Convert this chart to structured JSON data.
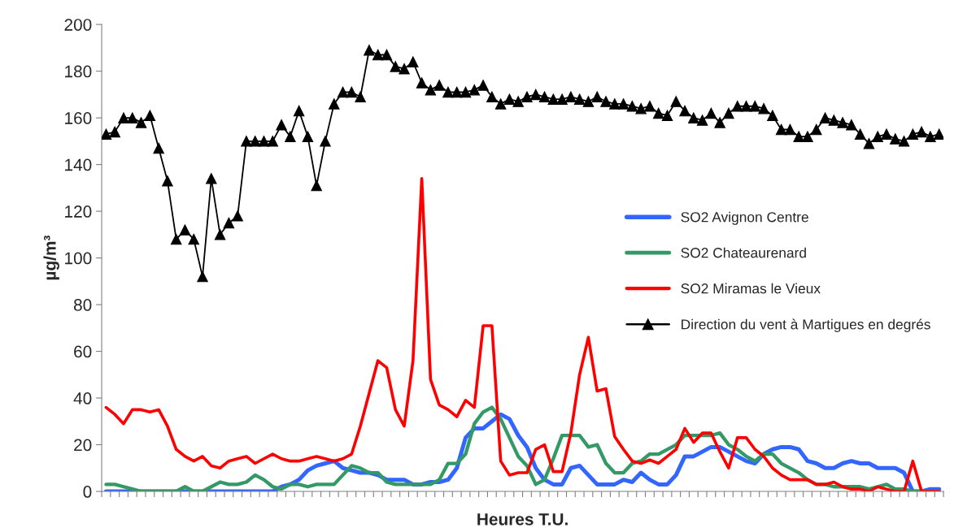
{
  "chart_data": {
    "type": "line",
    "xlabel": "Heures T.U.",
    "ylabel": "µg/m³",
    "categories": [
      null,
      null,
      null,
      null,
      null,
      null,
      null,
      null,
      null,
      null,
      null,
      null,
      null,
      null,
      null,
      null,
      null,
      null,
      null,
      null,
      null,
      null,
      null,
      null,
      null,
      null,
      null,
      null,
      null,
      null,
      null,
      null,
      null,
      null,
      null,
      null,
      null,
      null,
      null,
      null,
      null,
      null,
      null,
      null,
      null,
      null,
      null,
      null,
      null,
      null,
      null,
      null,
      null,
      null,
      null,
      null,
      null,
      null,
      null,
      null,
      null,
      null,
      null,
      null,
      null,
      null,
      null,
      null,
      null,
      null,
      null,
      null,
      null,
      null,
      null,
      null,
      null,
      null,
      null,
      null,
      null,
      null,
      null,
      null,
      null,
      null,
      null,
      null,
      null,
      null,
      null,
      null,
      null,
      null,
      null,
      null
    ],
    "ylim": [
      0,
      200
    ],
    "yticks": [
      0,
      20,
      40,
      60,
      80,
      100,
      120,
      140,
      160,
      180,
      200
    ],
    "grid": false,
    "legend": "right",
    "tick_labels": "y",
    "line_style": "solid",
    "series": [
      {
        "name": "SO2 Avignon Centre",
        "color": "#3366ff",
        "marker": "none",
        "values": [
          0,
          0,
          0,
          0,
          0,
          0,
          0,
          0,
          0,
          0,
          0,
          0,
          0,
          0,
          0,
          0,
          0,
          0,
          0,
          0,
          2,
          3,
          5,
          9,
          11,
          12,
          13,
          10,
          9,
          8,
          8,
          7,
          5,
          5,
          5,
          3,
          3,
          4,
          4,
          5,
          10,
          23,
          27,
          27,
          30,
          33,
          31,
          24,
          19,
          10,
          5,
          3,
          3,
          10,
          11,
          7,
          3,
          3,
          3,
          5,
          4,
          8,
          5,
          3,
          3,
          7,
          15,
          15,
          17,
          19,
          19,
          17,
          15,
          13,
          12,
          16,
          18,
          19,
          19,
          18,
          13,
          12,
          10,
          10,
          12,
          13,
          12,
          12,
          10,
          10,
          10,
          8,
          0,
          0,
          1,
          1
        ]
      },
      {
        "name": "SO2 Chateaurenard",
        "color": "#339966",
        "marker": "none",
        "values": [
          3,
          3,
          2,
          1,
          0,
          0,
          0,
          0,
          0,
          2,
          0,
          0,
          2,
          4,
          3,
          3,
          4,
          7,
          5,
          2,
          1,
          3,
          3,
          2,
          3,
          3,
          3,
          7,
          11,
          10,
          8,
          8,
          4,
          3,
          3,
          3,
          3,
          3,
          5,
          12,
          12,
          16,
          29,
          34,
          36,
          31,
          23,
          15,
          11,
          3,
          5,
          14,
          24,
          24,
          24,
          19,
          20,
          12,
          8,
          8,
          12,
          13,
          16,
          16,
          18,
          20,
          24,
          24,
          24,
          24,
          25,
          20,
          18,
          15,
          13,
          16,
          16,
          12,
          10,
          8,
          5,
          3,
          3,
          2,
          2,
          2,
          2,
          1,
          2,
          3,
          1,
          1,
          0,
          0,
          0,
          0
        ]
      },
      {
        "name": "SO2 Miramas le Vieux",
        "color": "#ff0000",
        "marker": "none",
        "values": [
          36,
          33,
          29,
          35,
          35,
          34,
          35,
          28,
          18,
          15,
          13,
          15,
          11,
          10,
          13,
          14,
          15,
          12,
          14,
          16,
          14,
          13,
          13,
          14,
          15,
          14,
          13,
          14,
          16,
          28,
          42,
          56,
          53,
          35,
          28,
          56,
          134,
          48,
          37,
          35,
          32,
          39,
          36,
          71,
          71,
          13,
          7,
          8,
          8,
          18,
          20,
          8.5,
          8.5,
          25,
          50,
          66,
          43,
          44,
          23.5,
          18,
          13,
          12,
          13.5,
          12,
          15,
          18,
          27,
          21,
          25,
          25,
          17,
          10,
          23,
          23,
          18,
          15,
          10,
          7,
          5,
          5,
          5,
          3,
          3,
          4,
          2,
          1,
          1,
          0,
          2,
          1,
          0,
          0,
          13,
          0,
          0,
          0
        ]
      },
      {
        "name": "Direction du vent à Martigues en degrés",
        "color": "#000000",
        "marker": "triangle",
        "values": [
          153,
          154,
          160,
          160,
          158,
          161,
          147,
          133,
          108,
          112,
          108,
          92,
          134,
          110,
          115,
          118,
          150,
          150,
          150,
          150,
          157,
          152,
          163,
          152,
          131,
          150,
          166,
          171,
          171,
          169,
          189,
          187,
          187,
          182,
          181,
          184,
          175,
          172,
          174,
          171,
          171,
          171,
          172,
          174,
          169,
          166,
          168,
          167,
          169,
          170,
          169,
          168,
          168,
          169,
          168,
          167,
          169,
          167,
          166,
          166,
          165,
          164,
          165,
          162,
          161,
          167,
          163,
          160,
          159,
          162,
          158,
          162,
          165,
          165,
          165,
          164,
          161,
          155,
          155,
          152,
          152,
          155,
          160,
          159,
          158,
          157,
          153,
          149,
          152,
          153,
          151,
          150,
          153,
          154,
          152,
          153
        ]
      }
    ]
  }
}
